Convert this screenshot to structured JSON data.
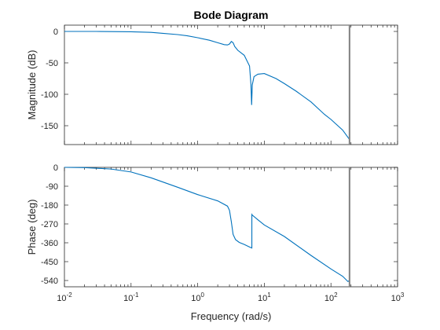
{
  "chart_data": {
    "type": "line",
    "title": "Bode Diagram",
    "xlabel": "Frequency (rad/s)",
    "xscale": "log",
    "xlim": [
      0.01,
      1000
    ],
    "xticks": [
      {
        "value": 0.01,
        "base": "10",
        "exp": "-2"
      },
      {
        "value": 0.1,
        "base": "10",
        "exp": "-1"
      },
      {
        "value": 1,
        "base": "10",
        "exp": "0"
      },
      {
        "value": 10,
        "base": "10",
        "exp": "1"
      },
      {
        "value": 100,
        "base": "10",
        "exp": "2"
      },
      {
        "value": 1000,
        "base": "10",
        "exp": "3"
      }
    ],
    "series_color": "#0072BD",
    "marker_color": "#808080",
    "marker_frequency": 190,
    "grid": false,
    "magnitude": {
      "ylabel": "Magnitude (dB)",
      "ylim": [
        -180,
        10
      ],
      "yticks": [
        0,
        -50,
        -100,
        -150
      ],
      "ytick_labels": [
        "0",
        "-50",
        "-100",
        "-150"
      ],
      "x": [
        0.01,
        0.03,
        0.1,
        0.2,
        0.3,
        0.5,
        0.7,
        1,
        1.5,
        2,
        2.5,
        2.8,
        3.0,
        3.2,
        3.4,
        3.6,
        4,
        5,
        6,
        6.3,
        6.45,
        6.6,
        7,
        8,
        10,
        15,
        20,
        30,
        50,
        80,
        100,
        150,
        190
      ],
      "y": [
        0,
        0,
        -0.5,
        -1.5,
        -3,
        -5,
        -7,
        -10,
        -14,
        -18,
        -21,
        -21.5,
        -20,
        -16,
        -18,
        -24,
        -30,
        -38,
        -55,
        -85,
        -117,
        -85,
        -72,
        -68,
        -67,
        -75,
        -83,
        -95,
        -112,
        -132,
        -140,
        -157,
        -172
      ]
    },
    "phase": {
      "ylabel": "Phase (deg)",
      "ylim": [
        -570,
        0
      ],
      "yticks": [
        0,
        -90,
        -180,
        -270,
        -360,
        -450,
        -540
      ],
      "ytick_labels": [
        "0",
        "-90",
        "-180",
        "-270",
        "-360",
        "-450",
        "-540"
      ],
      "x": [
        0.01,
        0.02,
        0.05,
        0.1,
        0.2,
        0.5,
        1,
        2,
        2.8,
        3.0,
        3.2,
        3.4,
        3.7,
        4.2,
        5,
        6,
        6.5,
        6.5,
        6.6,
        8,
        10,
        20,
        50,
        100,
        150,
        180,
        190
      ],
      "y": [
        0,
        -1,
        -8,
        -22,
        -50,
        -95,
        -130,
        -160,
        -185,
        -205,
        -260,
        -320,
        -345,
        -358,
        -368,
        -380,
        -385,
        -225,
        -228,
        -250,
        -275,
        -330,
        -420,
        -485,
        -520,
        -545,
        -540
      ]
    }
  }
}
